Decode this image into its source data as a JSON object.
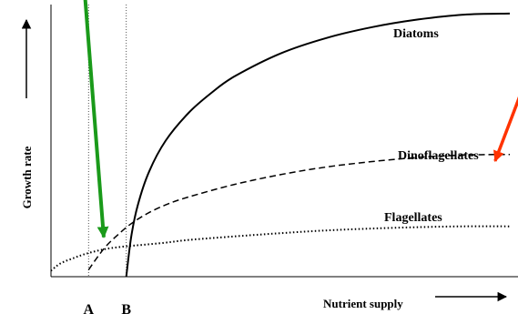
{
  "chart_data": {
    "type": "line",
    "xlabel": "Nutrient supply",
    "ylabel": "Growth rate",
    "x_ticks": [
      "A",
      "B"
    ],
    "xlim": [
      0,
      100
    ],
    "ylim": [
      0,
      100
    ],
    "grid": false,
    "colors": {
      "series": "#000000",
      "green_arrow": "#1a9a1a",
      "red_arrow": "#ff3300"
    },
    "series": [
      {
        "name": "Diatoms",
        "style": "solid",
        "x": [
          16.4,
          17.5,
          18.9,
          21.4,
          25,
          30,
          35,
          40,
          50,
          60,
          70,
          80,
          90,
          100
        ],
        "y": [
          0,
          14.8,
          26.2,
          38.7,
          50,
          60.2,
          67.6,
          73.6,
          82,
          87.7,
          91.7,
          94.5,
          96.3,
          96.7
        ]
      },
      {
        "name": "Dinoflagellates",
        "style": "dashed",
        "x": [
          8.2,
          10,
          12,
          14.5,
          17.5,
          21,
          25,
          30,
          40,
          50,
          60,
          70,
          80,
          90,
          100
        ],
        "y": [
          2.5,
          6.9,
          11.2,
          15.3,
          19.5,
          23.2,
          26.4,
          29.3,
          33.9,
          37.5,
          40.3,
          42.3,
          43.8,
          44.7,
          44.9
        ]
      },
      {
        "name": "Flagellates",
        "style": "dotted",
        "x": [
          0,
          2,
          5,
          8,
          12,
          16,
          20,
          25,
          30,
          40,
          50,
          60,
          70,
          80,
          90,
          100
        ],
        "y": [
          2.2,
          4.8,
          6.9,
          8.6,
          10.2,
          11.1,
          11.7,
          12.5,
          13.5,
          14.8,
          16,
          17,
          17.7,
          18.2,
          18.5,
          18.5
        ]
      }
    ],
    "annotations": [
      {
        "type": "vline",
        "x": 8.2,
        "label": "A"
      },
      {
        "type": "vline",
        "x": 16.4,
        "label": "B"
      },
      {
        "type": "arrow",
        "color": "green",
        "from": [
          6.4,
          125
        ],
        "to": [
          11.5,
          14.5
        ]
      },
      {
        "type": "arrow",
        "color": "red",
        "from": [
          103,
          70
        ],
        "to": [
          96.8,
          42.5
        ]
      }
    ]
  }
}
